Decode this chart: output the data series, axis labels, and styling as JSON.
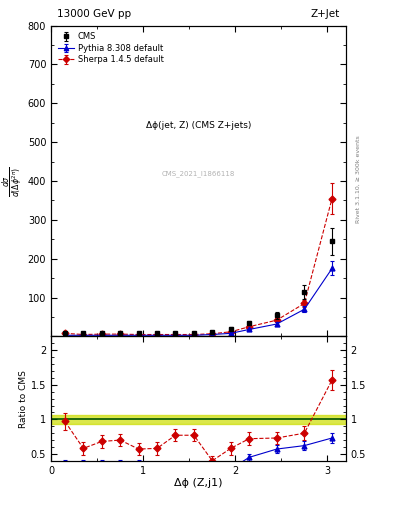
{
  "title_left": "13000 GeV pp",
  "title_right": "Z+Jet",
  "ylabel_main": "dσ/d(Δφ²π)",
  "ylabel_ratio": "Ratio to CMS",
  "xlabel": "Δϕ (Z,j1)",
  "annotation": "Δϕ(jet, Z) (CMS Z+jets)",
  "watermark": "CMS_2021_I1866118",
  "right_label": "Rivet 3.1.10, ≥ 300k events",
  "cms_x": [
    0.15,
    0.35,
    0.55,
    0.75,
    0.95,
    1.15,
    1.35,
    1.55,
    1.75,
    1.95,
    2.15,
    2.45,
    2.75,
    3.05
  ],
  "cms_y": [
    8,
    8,
    8,
    8,
    8,
    8,
    8,
    8,
    12,
    20,
    35,
    55,
    115,
    245
  ],
  "cms_yerr": [
    1.5,
    1.5,
    1.5,
    1.5,
    1.5,
    1.5,
    1.5,
    1.5,
    2,
    4,
    6,
    9,
    18,
    35
  ],
  "pythia_x": [
    0.15,
    0.35,
    0.55,
    0.75,
    0.95,
    1.15,
    1.35,
    1.55,
    1.75,
    1.95,
    2.15,
    2.45,
    2.75,
    3.05
  ],
  "pythia_y": [
    3,
    3,
    3,
    3,
    3,
    3,
    3,
    3,
    5,
    8,
    18,
    32,
    70,
    175
  ],
  "pythia_yerr": [
    0.3,
    0.3,
    0.3,
    0.3,
    0.3,
    0.3,
    0.3,
    0.3,
    0.5,
    1,
    2,
    4,
    8,
    18
  ],
  "sherpa_x": [
    0.15,
    0.35,
    0.55,
    0.75,
    0.95,
    1.15,
    1.35,
    1.55,
    1.75,
    1.95,
    2.15,
    2.45,
    2.75,
    3.05
  ],
  "sherpa_y": [
    8,
    5,
    6,
    6,
    5,
    5,
    5,
    5,
    7,
    12,
    25,
    42,
    85,
    355
  ],
  "sherpa_yerr": [
    1,
    0.8,
    0.8,
    0.8,
    0.8,
    0.8,
    0.8,
    0.8,
    1,
    2,
    3,
    5,
    10,
    40
  ],
  "pythia_ratio_x": [
    0.15,
    0.35,
    0.55,
    0.75,
    0.95,
    1.15,
    1.35,
    1.55,
    1.75,
    1.95,
    2.15,
    2.45,
    2.75,
    3.05
  ],
  "pythia_ratio_y": [
    0.37,
    0.37,
    0.37,
    0.37,
    0.37,
    0.26,
    0.26,
    0.26,
    0.26,
    0.28,
    0.45,
    0.57,
    0.62,
    0.73
  ],
  "pythia_ratio_yerr": [
    0.04,
    0.04,
    0.04,
    0.04,
    0.04,
    0.03,
    0.03,
    0.03,
    0.03,
    0.04,
    0.05,
    0.06,
    0.07,
    0.07
  ],
  "sherpa_ratio_x": [
    0.15,
    0.35,
    0.55,
    0.75,
    0.95,
    1.15,
    1.35,
    1.55,
    1.75,
    1.95,
    2.15,
    2.45,
    2.75,
    3.05
  ],
  "sherpa_ratio_y": [
    0.97,
    0.58,
    0.68,
    0.7,
    0.57,
    0.58,
    0.77,
    0.77,
    0.4,
    0.58,
    0.72,
    0.73,
    0.8,
    1.57
  ],
  "sherpa_ratio_yerr": [
    0.12,
    0.09,
    0.09,
    0.09,
    0.09,
    0.09,
    0.09,
    0.09,
    0.07,
    0.09,
    0.09,
    0.09,
    0.1,
    0.14
  ],
  "cms_color": "#000000",
  "pythia_color": "#0000cc",
  "sherpa_color": "#cc0000",
  "ref_band_color": "#ccdd00",
  "ref_line_color": "#005500",
  "ylim_main": [
    0,
    800
  ],
  "ylim_ratio": [
    0.4,
    2.2
  ],
  "xlim": [
    0.0,
    3.2
  ],
  "yticks_main": [
    0,
    100,
    200,
    300,
    400,
    500,
    600,
    700,
    800
  ],
  "yticks_ratio": [
    0.5,
    1.0,
    1.5,
    2.0
  ],
  "xticks": [
    0,
    1,
    2,
    3
  ]
}
